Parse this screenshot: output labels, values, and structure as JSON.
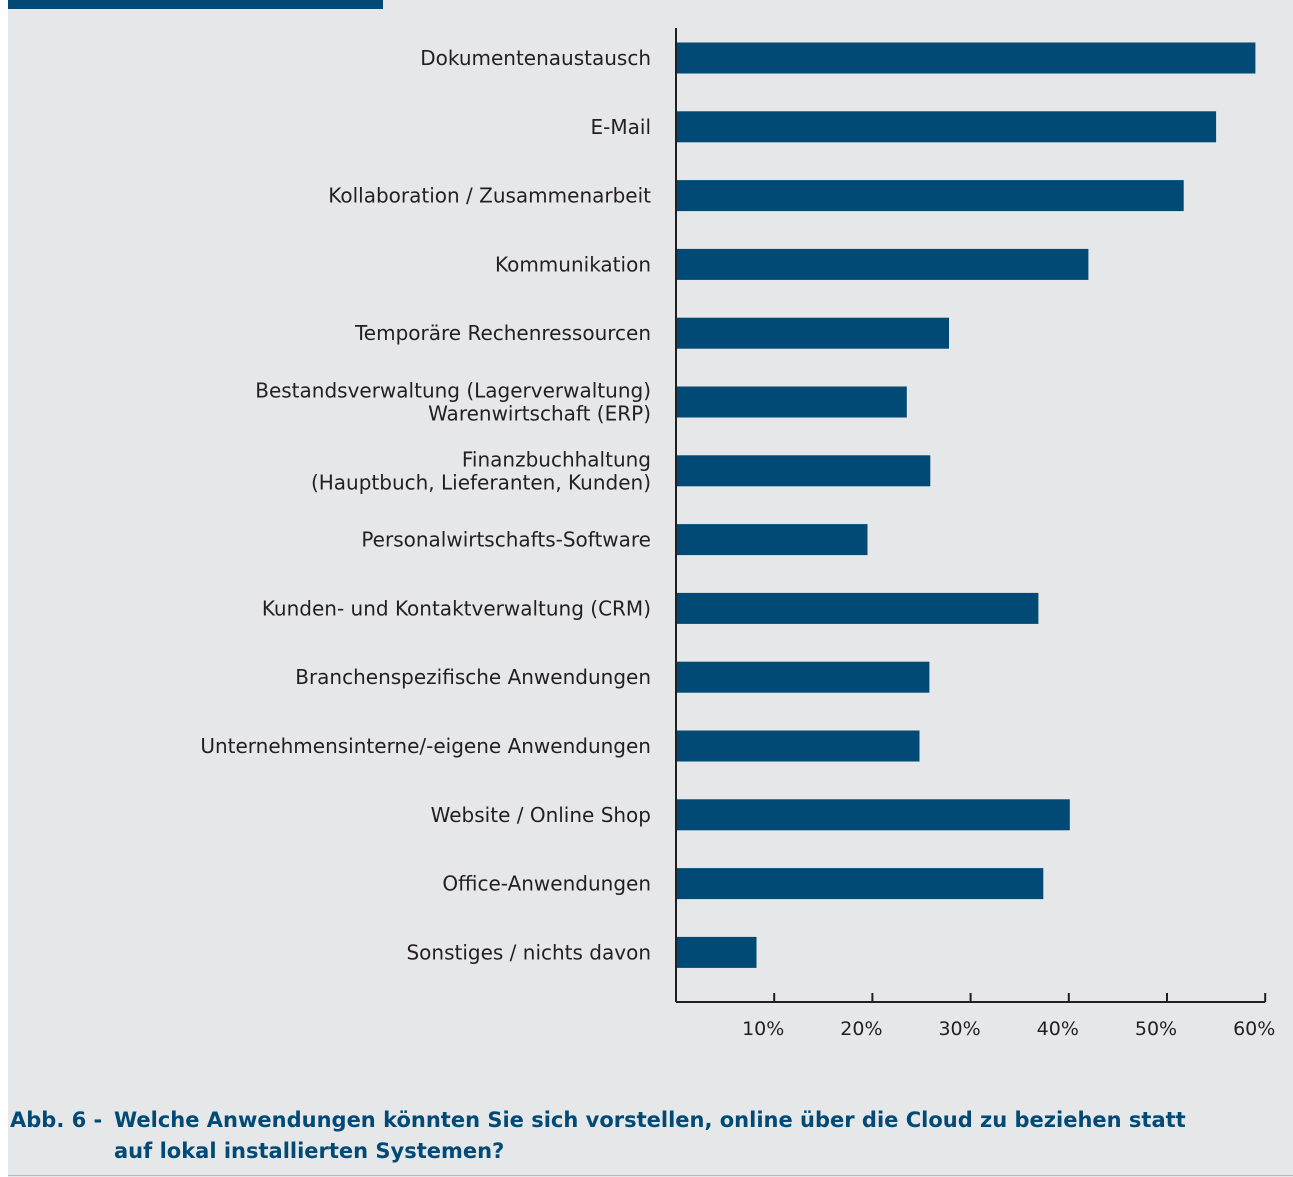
{
  "chart_data": {
    "type": "bar",
    "orientation": "horizontal",
    "categories": [
      [
        "Dokumentenaustausch"
      ],
      [
        "E-Mail"
      ],
      [
        "Kollaboration / Zusammenarbeit"
      ],
      [
        "Kommunikation"
      ],
      [
        "Temporäre Rechenressourcen"
      ],
      [
        "Bestandsverwaltung (Lagerverwaltung)",
        "Warenwirtschaft (ERP)"
      ],
      [
        "Finanzbuchhaltung",
        "(Hauptbuch, Lieferanten, Kunden)"
      ],
      [
        "Personalwirtschafts-Software"
      ],
      [
        "Kunden- und Kontaktverwaltung (CRM)"
      ],
      [
        "Branchenspezifische Anwendungen"
      ],
      [
        "Unternehmensinterne/-eigene Anwendungen"
      ],
      [
        "Website / Online Shop"
      ],
      [
        "Office-Anwendungen"
      ],
      [
        "Sonstiges / nichts davon"
      ]
    ],
    "values": [
      59,
      55,
      51.7,
      42,
      27.8,
      23.5,
      25.9,
      19.5,
      36.9,
      25.8,
      24.8,
      40.1,
      37.4,
      8.2
    ],
    "xlim": [
      0,
      60
    ],
    "xticks": [
      10,
      20,
      30,
      40,
      50,
      60
    ],
    "xtick_labels": [
      "10%",
      "20%",
      "30%",
      "40%",
      "50%",
      "60%"
    ],
    "bar_color": "#004a75",
    "grid": false
  },
  "caption": {
    "prefix": "Abb. 6 -",
    "text": "Welche Anwendungen könnten Sie sich vorstellen, online über die Cloud zu beziehen statt auf lokal installierten Systemen?"
  },
  "colors": {
    "accent": "#004a75",
    "panel_background": "#e6e7e8",
    "text": "#231f20"
  }
}
